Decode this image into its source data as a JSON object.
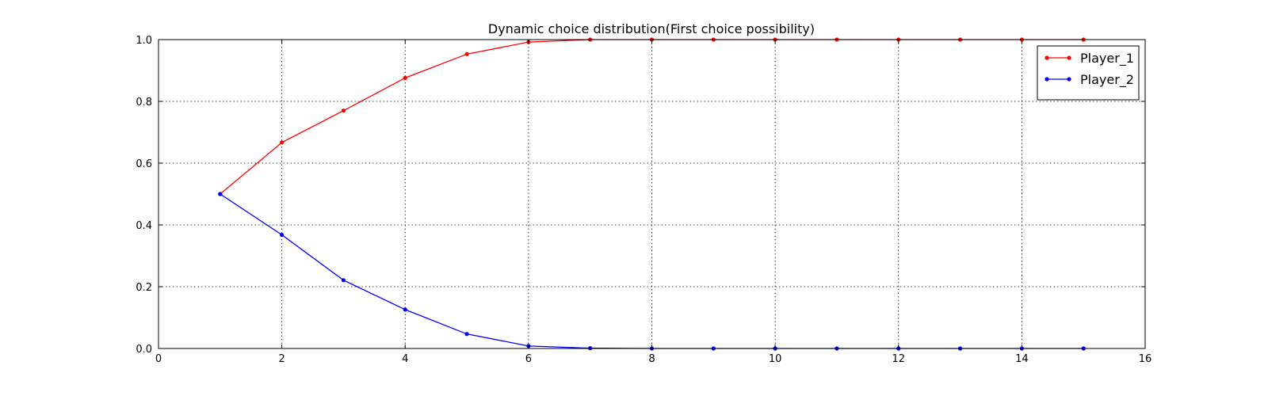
{
  "chart_data": {
    "type": "line",
    "title": "Dynamic choice distribution(First choice possibility)",
    "xlabel": "",
    "ylabel": "",
    "xlim": [
      0,
      16
    ],
    "ylim": [
      0.0,
      1.0
    ],
    "xticks": [
      0,
      2,
      4,
      6,
      8,
      10,
      12,
      14,
      16
    ],
    "yticks": [
      0.0,
      0.2,
      0.4,
      0.6,
      0.8,
      1.0
    ],
    "xtick_labels": [
      "0",
      "2",
      "4",
      "6",
      "8",
      "10",
      "12",
      "14",
      "16"
    ],
    "ytick_labels": [
      "0.0",
      "0.2",
      "0.4",
      "0.6",
      "0.8",
      "1.0"
    ],
    "grid": true,
    "legend_position": "top-right",
    "x": [
      1,
      2,
      3,
      4,
      5,
      6,
      7,
      8,
      9,
      10,
      11,
      12,
      13,
      14,
      15
    ],
    "series": [
      {
        "name": "Player_1",
        "color": "#ff0000",
        "values": [
          0.5,
          0.667,
          0.77,
          0.876,
          0.953,
          0.992,
          1.0,
          1.0,
          1.0,
          1.0,
          1.0,
          1.0,
          1.0,
          1.0,
          1.0
        ]
      },
      {
        "name": "Player_2",
        "color": "#0000ff",
        "values": [
          0.5,
          0.368,
          0.221,
          0.126,
          0.047,
          0.008,
          0.001,
          0.0,
          0.0,
          0.0,
          0.0,
          0.0,
          0.0,
          0.0,
          0.0
        ]
      }
    ]
  }
}
